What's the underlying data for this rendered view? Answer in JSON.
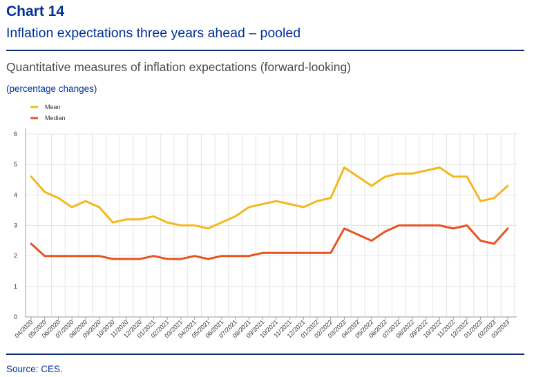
{
  "header": {
    "chart_number": "Chart 14",
    "title": "Inflation expectations three years ahead – pooled",
    "subtitle": "Quantitative measures of inflation expectations (forward-looking)",
    "units": "(percentage changes)"
  },
  "footer": {
    "source": "Source: CES."
  },
  "colors": {
    "mean": "#f5b81c",
    "median": "#e8531f",
    "grid": "#e4e4e4",
    "axis": "#9a9a9a",
    "rule": "#0a2c6e"
  },
  "chart_data": {
    "type": "line",
    "title": "Quantitative measures of inflation expectations (forward-looking)",
    "xlabel": "",
    "ylabel": "(percentage changes)",
    "ylim": [
      0,
      6
    ],
    "yticks": [
      "0",
      "1",
      "2",
      "3",
      "4",
      "5",
      "6"
    ],
    "grid": true,
    "legend_position": "top-left",
    "categories": [
      "04/2020",
      "05/2020",
      "06/2020",
      "07/2020",
      "08/2020",
      "09/2020",
      "10/2020",
      "11/2020",
      "12/2020",
      "01/2021",
      "02/2021",
      "03/2021",
      "04/2021",
      "05/2021",
      "06/2021",
      "07/2021",
      "08/2021",
      "09/2021",
      "10/2021",
      "11/2021",
      "12/2021",
      "01/2022",
      "02/2022",
      "03/2022",
      "04/2022",
      "05/2022",
      "06/2022",
      "07/2022",
      "08/2022",
      "09/2022",
      "10/2022",
      "11/2022",
      "12/2022",
      "01/2023",
      "02/2023",
      "03/2023"
    ],
    "series": [
      {
        "name": "Mean",
        "values": [
          4.6,
          4.1,
          3.9,
          3.6,
          3.8,
          3.6,
          3.1,
          3.2,
          3.2,
          3.3,
          3.1,
          3.0,
          3.0,
          2.9,
          3.1,
          3.3,
          3.6,
          3.7,
          3.8,
          3.7,
          3.6,
          3.8,
          3.9,
          4.9,
          4.6,
          4.3,
          4.6,
          4.7,
          4.7,
          4.8,
          4.9,
          4.6,
          4.6,
          3.8,
          3.9,
          4.3
        ]
      },
      {
        "name": "Median",
        "values": [
          2.4,
          2.0,
          2.0,
          2.0,
          2.0,
          2.0,
          1.9,
          1.9,
          1.9,
          2.0,
          1.9,
          1.9,
          2.0,
          1.9,
          2.0,
          2.0,
          2.0,
          2.1,
          2.1,
          2.1,
          2.1,
          2.1,
          2.1,
          2.9,
          2.7,
          2.5,
          2.8,
          3.0,
          3.0,
          3.0,
          3.0,
          2.9,
          3.0,
          2.5,
          2.4,
          2.9
        ]
      }
    ]
  }
}
